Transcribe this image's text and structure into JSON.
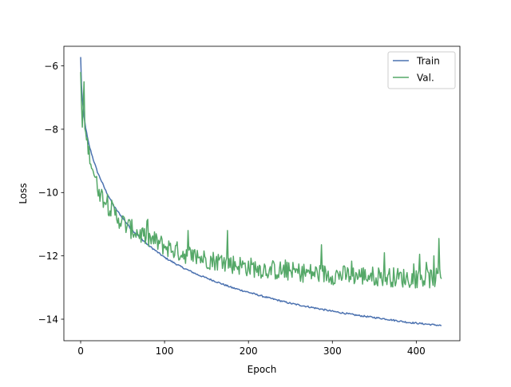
{
  "chart_data": {
    "type": "line",
    "title": "",
    "xlabel": "Epoch",
    "ylabel": "Loss",
    "xlim": [
      -20,
      452
    ],
    "ylim": [
      -14.68,
      -5.38
    ],
    "xticks": [
      0,
      100,
      200,
      300,
      400
    ],
    "yticks": [
      -6,
      -8,
      -10,
      -12,
      -14
    ],
    "grid": false,
    "legend_position": "top-right",
    "series": [
      {
        "name": "Train",
        "color": "#4c72b0",
        "anchors": [
          [
            0,
            -5.72
          ],
          [
            1,
            -6.6
          ],
          [
            2,
            -7.05
          ],
          [
            3,
            -7.35
          ],
          [
            4,
            -7.6
          ],
          [
            6,
            -7.95
          ],
          [
            8,
            -8.25
          ],
          [
            10,
            -8.5
          ],
          [
            15,
            -8.95
          ],
          [
            20,
            -9.35
          ],
          [
            25,
            -9.65
          ],
          [
            30,
            -9.95
          ],
          [
            40,
            -10.45
          ],
          [
            50,
            -10.8
          ],
          [
            60,
            -11.15
          ],
          [
            70,
            -11.4
          ],
          [
            80,
            -11.65
          ],
          [
            90,
            -11.85
          ],
          [
            100,
            -12.05
          ],
          [
            120,
            -12.35
          ],
          [
            140,
            -12.6
          ],
          [
            160,
            -12.8
          ],
          [
            180,
            -13.0
          ],
          [
            200,
            -13.15
          ],
          [
            220,
            -13.3
          ],
          [
            250,
            -13.5
          ],
          [
            280,
            -13.65
          ],
          [
            300,
            -13.75
          ],
          [
            330,
            -13.88
          ],
          [
            360,
            -13.98
          ],
          [
            390,
            -14.1
          ],
          [
            410,
            -14.15
          ],
          [
            430,
            -14.2
          ]
        ]
      },
      {
        "name": "Val.",
        "color": "#55a868",
        "anchors": [
          [
            0,
            -6.35
          ],
          [
            1,
            -7.2
          ],
          [
            2,
            -7.9
          ],
          [
            3,
            -7.3
          ],
          [
            4,
            -6.5
          ],
          [
            5,
            -7.8
          ],
          [
            6,
            -8.2
          ],
          [
            8,
            -8.45
          ],
          [
            10,
            -8.7
          ],
          [
            12,
            -9.0
          ],
          [
            15,
            -9.3
          ],
          [
            18,
            -9.6
          ],
          [
            20,
            -9.8
          ],
          [
            25,
            -10.1
          ],
          [
            30,
            -10.3
          ],
          [
            40,
            -10.65
          ],
          [
            50,
            -10.95
          ],
          [
            60,
            -11.15
          ],
          [
            70,
            -11.3
          ],
          [
            80,
            -11.45
          ],
          [
            90,
            -11.55
          ],
          [
            100,
            -11.7
          ],
          [
            120,
            -11.9
          ],
          [
            140,
            -12.05
          ],
          [
            160,
            -12.15
          ],
          [
            180,
            -12.25
          ],
          [
            200,
            -12.35
          ],
          [
            220,
            -12.42
          ],
          [
            250,
            -12.5
          ],
          [
            280,
            -12.55
          ],
          [
            300,
            -12.6
          ],
          [
            330,
            -12.62
          ],
          [
            360,
            -12.65
          ],
          [
            390,
            -12.7
          ],
          [
            410,
            -12.72
          ],
          [
            430,
            -12.7
          ]
        ],
        "spikes": [
          [
            4,
            -6.5
          ],
          [
            22,
            -9.9
          ],
          [
            79,
            -10.9
          ],
          [
            128,
            -11.2
          ],
          [
            175,
            -11.2
          ],
          [
            287,
            -11.65
          ],
          [
            362,
            -11.9
          ],
          [
            404,
            -11.95
          ],
          [
            421,
            -12.0
          ],
          [
            427,
            -11.45
          ],
          [
            432,
            -12.55
          ]
        ]
      }
    ]
  }
}
